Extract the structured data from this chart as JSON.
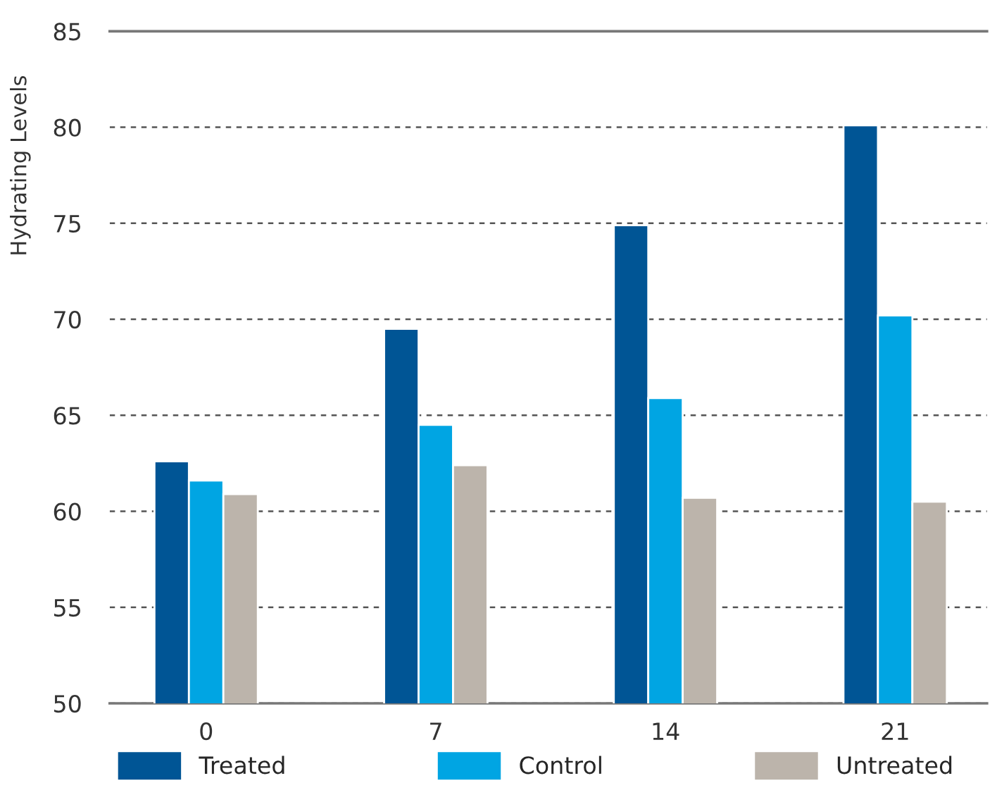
{
  "chart_data": {
    "type": "bar",
    "ylabel": "Hydrating Levels",
    "categories": [
      "0",
      "7",
      "14",
      "21"
    ],
    "series": [
      {
        "name": "Treated",
        "color": "#005595",
        "values": [
          62.6,
          69.5,
          74.9,
          80.1
        ]
      },
      {
        "name": "Control",
        "color": "#00a5e3",
        "values": [
          61.6,
          64.5,
          65.9,
          70.2
        ]
      },
      {
        "name": "Untreated",
        "color": "#bcb4ab",
        "values": [
          60.9,
          62.4,
          60.7,
          60.5
        ]
      }
    ],
    "ylim": [
      50,
      85
    ],
    "yticks": [
      50,
      55,
      60,
      65,
      70,
      75,
      80,
      85
    ],
    "grid": "y",
    "legend": "bottom"
  }
}
